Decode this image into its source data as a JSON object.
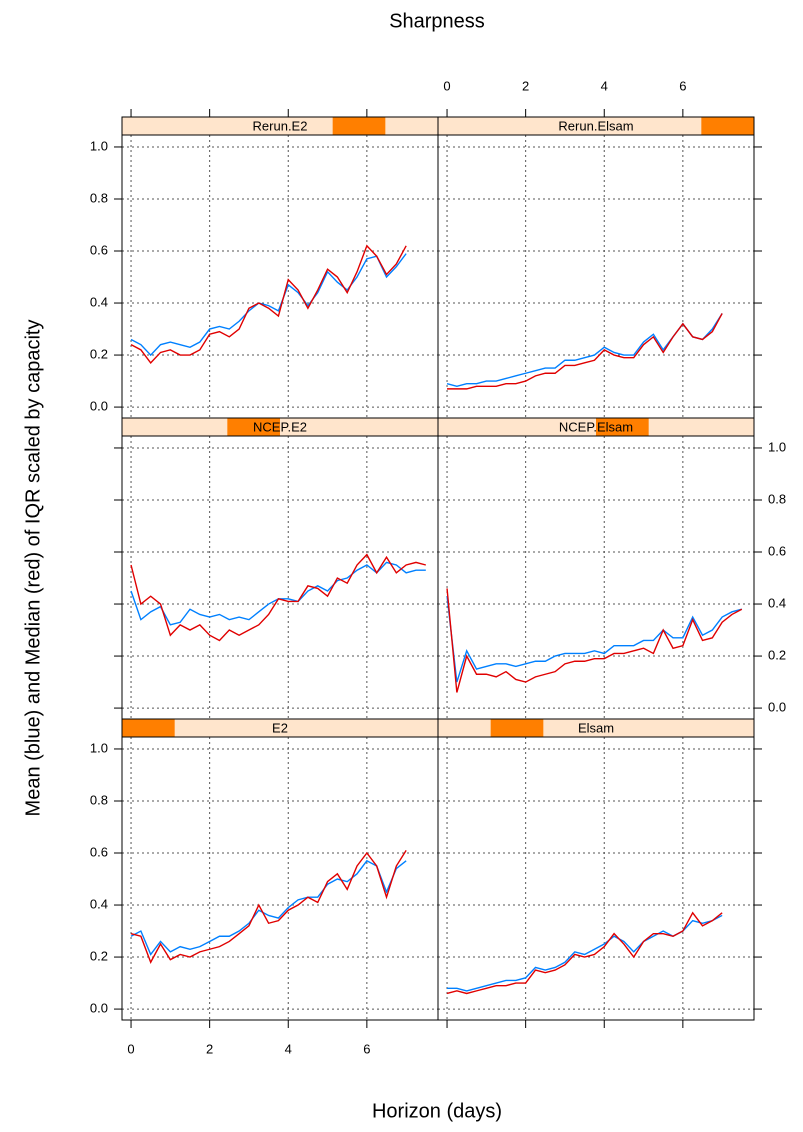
{
  "chart_data": {
    "type": "line",
    "title": "Sharpness",
    "xlabel": "Horizon (days)",
    "ylabel": "Mean (blue) and Median (red) of IQR scaled by capacity",
    "xlim": [
      -0.23,
      7.81
    ],
    "ylim": [
      -0.042,
      1.046
    ],
    "grid": true,
    "xticks": [
      0,
      2,
      4,
      6
    ],
    "yticks": [
      {
        "value": 0,
        "label": "0.0"
      },
      0.2,
      0.4,
      0.6,
      0.8,
      {
        "value": 1,
        "label": "1.0"
      }
    ],
    "x": [
      0,
      0.25,
      0.5,
      0.75,
      1,
      1.25,
      1.5,
      1.75,
      2,
      2.25,
      2.5,
      2.75,
      3,
      3.25,
      3.5,
      3.75,
      4,
      4.25,
      4.5,
      4.75,
      5,
      5.25,
      5.5,
      5.75,
      6,
      6.25,
      6.5,
      6.75,
      7,
      7.25,
      7.5
    ],
    "panels": [
      {
        "title": "Rerun.E2",
        "series": [
          {
            "color": "#0080ff",
            "values": [
              0.26,
              0.24,
              0.2,
              0.24,
              0.25,
              0.24,
              0.23,
              0.25,
              0.3,
              0.31,
              0.3,
              0.33,
              0.37,
              0.4,
              0.39,
              0.37,
              0.47,
              0.44,
              0.39,
              0.44,
              0.52,
              0.48,
              0.45,
              0.5,
              0.57,
              0.58,
              0.5,
              0.54,
              0.59,
              null,
              null
            ]
          },
          {
            "color": "#e00000",
            "values": [
              0.24,
              0.22,
              0.17,
              0.21,
              0.22,
              0.2,
              0.2,
              0.22,
              0.28,
              0.29,
              0.27,
              0.3,
              0.38,
              0.4,
              0.38,
              0.35,
              0.49,
              0.45,
              0.38,
              0.45,
              0.53,
              0.5,
              0.44,
              0.52,
              0.62,
              0.58,
              0.51,
              0.55,
              0.62,
              null,
              null
            ]
          }
        ]
      },
      {
        "title": "Rerun.Elsam",
        "series": [
          {
            "color": "#0080ff",
            "values": [
              0.09,
              0.08,
              0.09,
              0.09,
              0.1,
              0.1,
              0.11,
              0.12,
              0.13,
              0.14,
              0.15,
              0.15,
              0.18,
              0.18,
              0.19,
              0.2,
              0.23,
              0.21,
              0.2,
              0.2,
              0.25,
              0.28,
              0.22,
              0.27,
              0.32,
              0.27,
              0.26,
              0.3,
              0.36,
              null,
              null
            ]
          },
          {
            "color": "#e00000",
            "values": [
              0.07,
              0.07,
              0.07,
              0.08,
              0.08,
              0.08,
              0.09,
              0.09,
              0.1,
              0.12,
              0.13,
              0.13,
              0.16,
              0.16,
              0.17,
              0.18,
              0.22,
              0.2,
              0.19,
              0.19,
              0.24,
              0.27,
              0.21,
              0.27,
              0.32,
              0.27,
              0.26,
              0.29,
              0.36,
              null,
              null
            ]
          }
        ]
      },
      {
        "title": "NCEP.E2",
        "series": [
          {
            "color": "#0080ff",
            "values": [
              0.45,
              0.34,
              0.37,
              0.39,
              0.32,
              0.33,
              0.38,
              0.36,
              0.35,
              0.36,
              0.34,
              0.35,
              0.34,
              0.37,
              0.4,
              0.42,
              0.42,
              0.41,
              0.45,
              0.47,
              0.45,
              0.49,
              0.5,
              0.53,
              0.55,
              0.52,
              0.56,
              0.55,
              0.52,
              0.53,
              0.53
            ]
          },
          {
            "color": "#e00000",
            "values": [
              0.55,
              0.4,
              0.43,
              0.4,
              0.28,
              0.32,
              0.3,
              0.32,
              0.28,
              0.26,
              0.3,
              0.28,
              0.3,
              0.32,
              0.36,
              0.42,
              0.41,
              0.41,
              0.47,
              0.46,
              0.43,
              0.5,
              0.48,
              0.55,
              0.59,
              0.52,
              0.58,
              0.52,
              0.55,
              0.56,
              0.55
            ]
          }
        ]
      },
      {
        "title": "NCEP.Elsam",
        "series": [
          {
            "color": "#0080ff",
            "values": [
              0.43,
              0.1,
              0.22,
              0.15,
              0.16,
              0.17,
              0.17,
              0.16,
              0.17,
              0.18,
              0.18,
              0.2,
              0.21,
              0.21,
              0.21,
              0.22,
              0.21,
              0.24,
              0.24,
              0.24,
              0.26,
              0.26,
              0.3,
              0.27,
              0.27,
              0.35,
              0.28,
              0.3,
              0.35,
              0.37,
              0.38
            ]
          },
          {
            "color": "#e00000",
            "values": [
              0.46,
              0.06,
              0.2,
              0.13,
              0.13,
              0.12,
              0.14,
              0.11,
              0.1,
              0.12,
              0.13,
              0.14,
              0.17,
              0.18,
              0.18,
              0.19,
              0.19,
              0.21,
              0.21,
              0.22,
              0.23,
              0.21,
              0.3,
              0.23,
              0.24,
              0.34,
              0.26,
              0.27,
              0.33,
              0.36,
              0.38
            ]
          }
        ]
      },
      {
        "title": "E2",
        "series": [
          {
            "color": "#0080ff",
            "values": [
              0.28,
              0.3,
              0.21,
              0.26,
              0.22,
              0.24,
              0.23,
              0.24,
              0.26,
              0.28,
              0.28,
              0.3,
              0.33,
              0.38,
              0.36,
              0.35,
              0.39,
              0.42,
              0.43,
              0.43,
              0.48,
              0.5,
              0.49,
              0.52,
              0.57,
              0.55,
              0.45,
              0.54,
              0.57,
              null,
              null
            ]
          },
          {
            "color": "#e00000",
            "values": [
              0.29,
              0.28,
              0.18,
              0.25,
              0.19,
              0.21,
              0.2,
              0.22,
              0.23,
              0.24,
              0.26,
              0.29,
              0.32,
              0.4,
              0.33,
              0.34,
              0.38,
              0.4,
              0.43,
              0.41,
              0.49,
              0.52,
              0.46,
              0.55,
              0.6,
              0.55,
              0.43,
              0.55,
              0.61,
              null,
              null
            ]
          }
        ]
      },
      {
        "title": "Elsam",
        "series": [
          {
            "color": "#0080ff",
            "values": [
              0.08,
              0.08,
              0.07,
              0.08,
              0.09,
              0.1,
              0.11,
              0.11,
              0.12,
              0.16,
              0.15,
              0.16,
              0.18,
              0.22,
              0.21,
              0.23,
              0.25,
              0.28,
              0.26,
              0.22,
              0.26,
              0.28,
              0.3,
              0.28,
              0.3,
              0.34,
              0.33,
              0.34,
              0.36,
              null,
              null
            ]
          },
          {
            "color": "#e00000",
            "values": [
              0.06,
              0.07,
              0.06,
              0.07,
              0.08,
              0.09,
              0.09,
              0.1,
              0.1,
              0.15,
              0.14,
              0.15,
              0.17,
              0.21,
              0.2,
              0.21,
              0.24,
              0.29,
              0.25,
              0.2,
              0.26,
              0.29,
              0.29,
              0.28,
              0.3,
              0.37,
              0.32,
              0.34,
              0.37,
              null,
              null
            ]
          }
        ]
      }
    ]
  }
}
